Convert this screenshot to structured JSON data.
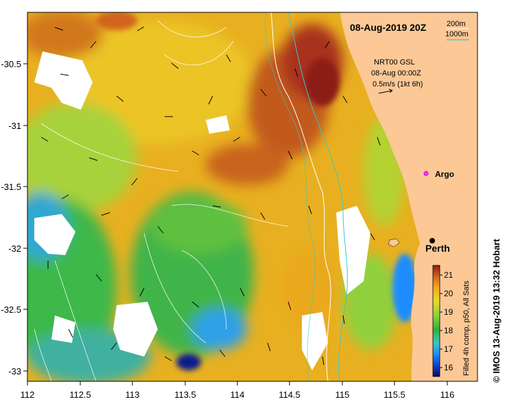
{
  "title": "08-Aug-2019 20Z",
  "bathymetry_legend": {
    "contour_1": "200m",
    "contour_2": "1000m",
    "color_1": "#ffffff",
    "color_2": "#33cccc"
  },
  "current_info": {
    "line1": "NRT00 GSL",
    "line2": "08-Aug 00:00Z",
    "line3": "0.5m/s (1kt 6h)"
  },
  "places": {
    "argo": "Argo",
    "perth": "Perth"
  },
  "colorbar": {
    "label": "Filled 4h comp, p50, All Sats",
    "ticks": [
      "16",
      "17",
      "18",
      "19",
      "20",
      "21"
    ],
    "min": 15.6,
    "max": 21.6,
    "colors": [
      "#0a0a6e",
      "#1040c8",
      "#1e8cff",
      "#38c8c8",
      "#30b040",
      "#8cd23c",
      "#e6dc28",
      "#f0aa1e",
      "#d2641e",
      "#8c1e14"
    ]
  },
  "credit": "© IMOS 13-Aug-2019 13:32 Hobart",
  "axes": {
    "x_ticks": [
      "112",
      "112.5",
      "113",
      "113.5",
      "114",
      "114.5",
      "115",
      "115.5",
      "116"
    ],
    "y_ticks": [
      "-30.5",
      "-31",
      "-31.5",
      "-32",
      "-32.5",
      "-33"
    ]
  },
  "land_color": "#fcc896"
}
